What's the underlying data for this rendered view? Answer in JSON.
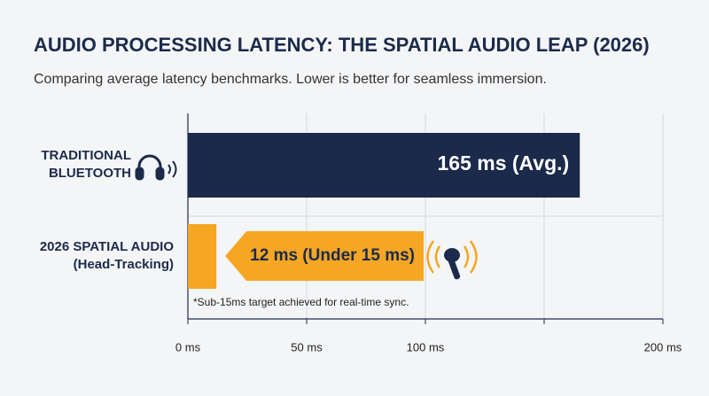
{
  "chart_data": {
    "type": "bar",
    "orientation": "horizontal",
    "title": "AUDIO PROCESSING LATENCY: THE SPATIAL AUDIO LEAP (2026)",
    "subtitle": "Comparing average latency benchmarks. Lower is better for seamless immersion.",
    "categories": [
      "TRADITIONAL\nBLUETOOTH",
      "2026 SPATIAL AUDIO\n(Head-Tracking)"
    ],
    "values": [
      165,
      12
    ],
    "value_labels": [
      "165 ms (Avg.)",
      "12 ms (Under 15 ms)"
    ],
    "colors": [
      "#1b2a4a",
      "#f5a623"
    ],
    "xlim": [
      0,
      200
    ],
    "xticks": [
      {
        "value": 0,
        "label": "0 ms"
      },
      {
        "value": 50,
        "label": "50 ms"
      },
      {
        "value": 100,
        "label": "100 ms"
      },
      {
        "value": 150,
        "label": null
      },
      {
        "value": 200,
        "label": "200 ms"
      }
    ],
    "grid": true,
    "annotation": "*Sub-15ms target achieved for real-time sync."
  }
}
